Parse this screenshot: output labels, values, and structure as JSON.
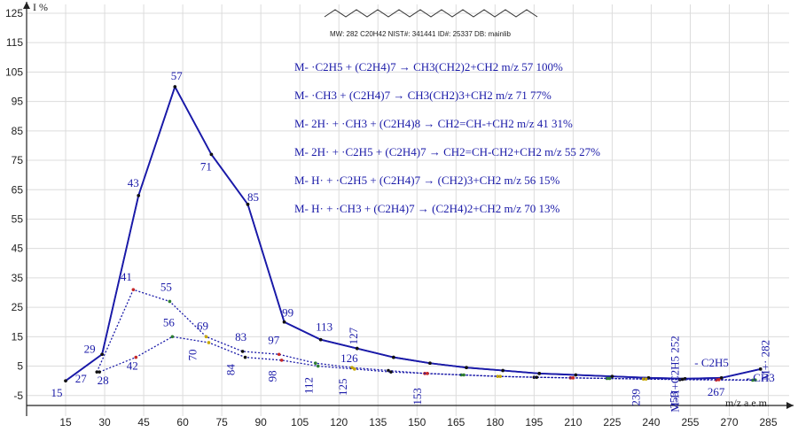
{
  "chart_data": {
    "type": "line",
    "xlabel": "m/z a.e.m.",
    "ylabel": "I %",
    "xlim": [
      0,
      293
    ],
    "ylim": [
      -12,
      128
    ],
    "x_ticks": [
      15,
      30,
      45,
      60,
      75,
      90,
      105,
      120,
      135,
      150,
      165,
      180,
      195,
      210,
      225,
      240,
      255,
      270,
      285
    ],
    "y_ticks": [
      -5,
      5,
      15,
      25,
      35,
      45,
      55,
      65,
      75,
      85,
      95,
      105,
      115,
      125
    ],
    "grid": true,
    "header_text": "MW: 282  C20H42  NIST#: 341441  ID#: 25337  DB: mainlib",
    "series": [
      {
        "color": "#1a1aa8",
        "style": "solid",
        "x": [
          15,
          29,
          43,
          57,
          71,
          85,
          99,
          113,
          127,
          141,
          155,
          169,
          183,
          197,
          211,
          225,
          239,
          253,
          267,
          282
        ],
        "y": [
          0,
          9,
          63,
          100,
          77,
          60,
          20,
          14,
          11,
          8,
          6,
          4.5,
          3.5,
          2.5,
          2,
          1.5,
          1,
          0.7,
          1,
          4
        ]
      },
      {
        "color": "#1a1aa8",
        "style": "solid",
        "x": [
          15,
          29,
          43,
          57,
          71,
          85,
          99,
          113,
          127,
          141,
          155,
          169,
          183,
          197,
          211,
          225,
          239,
          253,
          267,
          282
        ],
        "y": [
          0,
          9,
          63,
          100,
          77,
          60,
          20,
          14,
          11,
          8,
          6,
          4.5,
          3.5,
          2.5,
          2,
          1.5,
          1,
          0.7,
          1,
          4
        ]
      },
      {
        "color": "#1a1aa8",
        "style": "dotted",
        "x": [
          27,
          41,
          55,
          69,
          83,
          97,
          111,
          125,
          139,
          153,
          167,
          181,
          195,
          209,
          223,
          237,
          251,
          265,
          279
        ],
        "y": [
          3,
          31,
          27,
          15,
          10,
          9,
          6,
          4.5,
          3.5,
          2.5,
          2,
          1.5,
          1.2,
          1,
          0.8,
          0.6,
          0.4,
          0.3,
          0.2
        ]
      },
      {
        "color": "#1a1aa8",
        "style": "dotted",
        "x": [
          28,
          42,
          56,
          70,
          84,
          98,
          112,
          126,
          140,
          154,
          168,
          182,
          196,
          210,
          224,
          238,
          252,
          266,
          280
        ],
        "y": [
          3,
          8,
          15,
          13,
          8,
          7,
          5,
          4,
          3,
          2.5,
          2,
          1.5,
          1.2,
          1,
          0.8,
          0.6,
          0.5,
          0.4,
          0.3
        ]
      }
    ],
    "peak_labels": [
      {
        "text": "15",
        "x": 15,
        "y": 0
      },
      {
        "text": "29",
        "x": 29,
        "y": 9
      },
      {
        "text": "27",
        "x": 27,
        "y": 3
      },
      {
        "text": "28",
        "x": 28,
        "y": 3
      },
      {
        "text": "43",
        "x": 43,
        "y": 63
      },
      {
        "text": "57",
        "x": 57,
        "y": 100
      },
      {
        "text": "71",
        "x": 71,
        "y": 77
      },
      {
        "text": "85",
        "x": 85,
        "y": 60
      },
      {
        "text": "41",
        "x": 41,
        "y": 31
      },
      {
        "text": "55",
        "x": 55,
        "y": 27
      },
      {
        "text": "42",
        "x": 42,
        "y": 8
      },
      {
        "text": "56",
        "x": 56,
        "y": 15
      },
      {
        "text": "69",
        "x": 69,
        "y": 15
      },
      {
        "text": "70",
        "x": 70,
        "y": 13
      },
      {
        "text": "83",
        "x": 83,
        "y": 10
      },
      {
        "text": "84",
        "x": 84,
        "y": 8
      },
      {
        "text": "99",
        "x": 99,
        "y": 20
      },
      {
        "text": "97",
        "x": 97,
        "y": 9
      },
      {
        "text": "98",
        "x": 98,
        "y": 7
      },
      {
        "text": "113",
        "x": 113,
        "y": 14
      },
      {
        "text": "112",
        "x": 112,
        "y": 5
      },
      {
        "text": "127",
        "x": 127,
        "y": 11
      },
      {
        "text": "126",
        "x": 126,
        "y": 4
      },
      {
        "text": "125",
        "x": 125,
        "y": 4.5
      },
      {
        "text": "153",
        "x": 153,
        "y": 2.5
      },
      {
        "text": "239",
        "x": 239,
        "y": 1
      },
      {
        "text": "253",
        "x": 253,
        "y": 0.7
      },
      {
        "text": "M-H+C2H5 252",
        "x": 252,
        "y": 0.5
      },
      {
        "text": "267",
        "x": 267,
        "y": 1
      },
      {
        "text": "- C2H5",
        "x": 253,
        "y": 0.7
      },
      {
        "text": "- CH3",
        "x": 267,
        "y": 1
      },
      {
        "text": "M+· 282",
        "x": 282,
        "y": 4
      }
    ],
    "annotations": [
      "M- ·C2H5  +  (C2H4)7  → CH3(CH2)2+CH2   m/z 57  100%",
      "M- ·CH3  +  (C2H4)7  → CH3(CH2)3+CH2   m/z 71  77%",
      "M- 2H· + ·CH3 + (C2H4)8 → CH2=CH-+CH2   m/z 41  31%",
      "M- 2H· + ·C2H5 + (C2H4)7 → CH2=CH-CH2+CH2  m/z 55  27%",
      "M- H· + ·C2H5 + (C2H4)7 → (CH2)3+CH2   m/z 56  15%",
      "M- H· + ·CH3 + (C2H4)7 → (C2H4)2+CH2   m/z 70  13%"
    ]
  }
}
